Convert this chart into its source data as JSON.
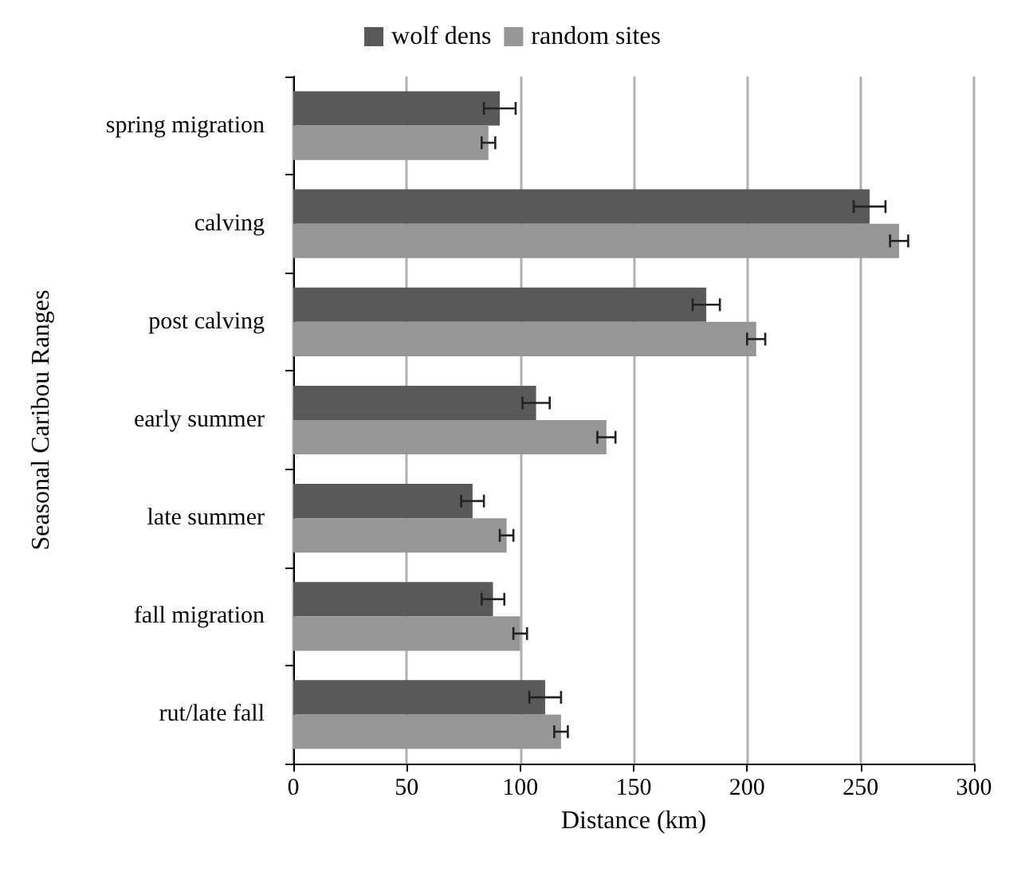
{
  "chart_data": {
    "type": "bar",
    "orientation": "horizontal",
    "xlabel": "Distance (km)",
    "ylabel": "Seasonal Caribou Ranges",
    "categories": [
      "spring migration",
      "calving",
      "post calving",
      "early summer",
      "late summer",
      "fall migration",
      "rut/late fall"
    ],
    "series": [
      {
        "name": "wolf dens",
        "color": "#595959",
        "values": [
          91,
          254,
          182,
          107,
          79,
          88,
          111
        ],
        "errors": [
          7,
          7,
          6,
          6,
          5,
          5,
          7
        ]
      },
      {
        "name": "random sites",
        "color": "#969696",
        "values": [
          86,
          267,
          204,
          138,
          94,
          100,
          118
        ],
        "errors": [
          3,
          4,
          4,
          4,
          3,
          3,
          3
        ]
      }
    ],
    "xlim": [
      0,
      300
    ],
    "xticks": [
      0,
      50,
      100,
      150,
      200,
      250,
      300
    ],
    "grid": "x",
    "legend": "top"
  }
}
